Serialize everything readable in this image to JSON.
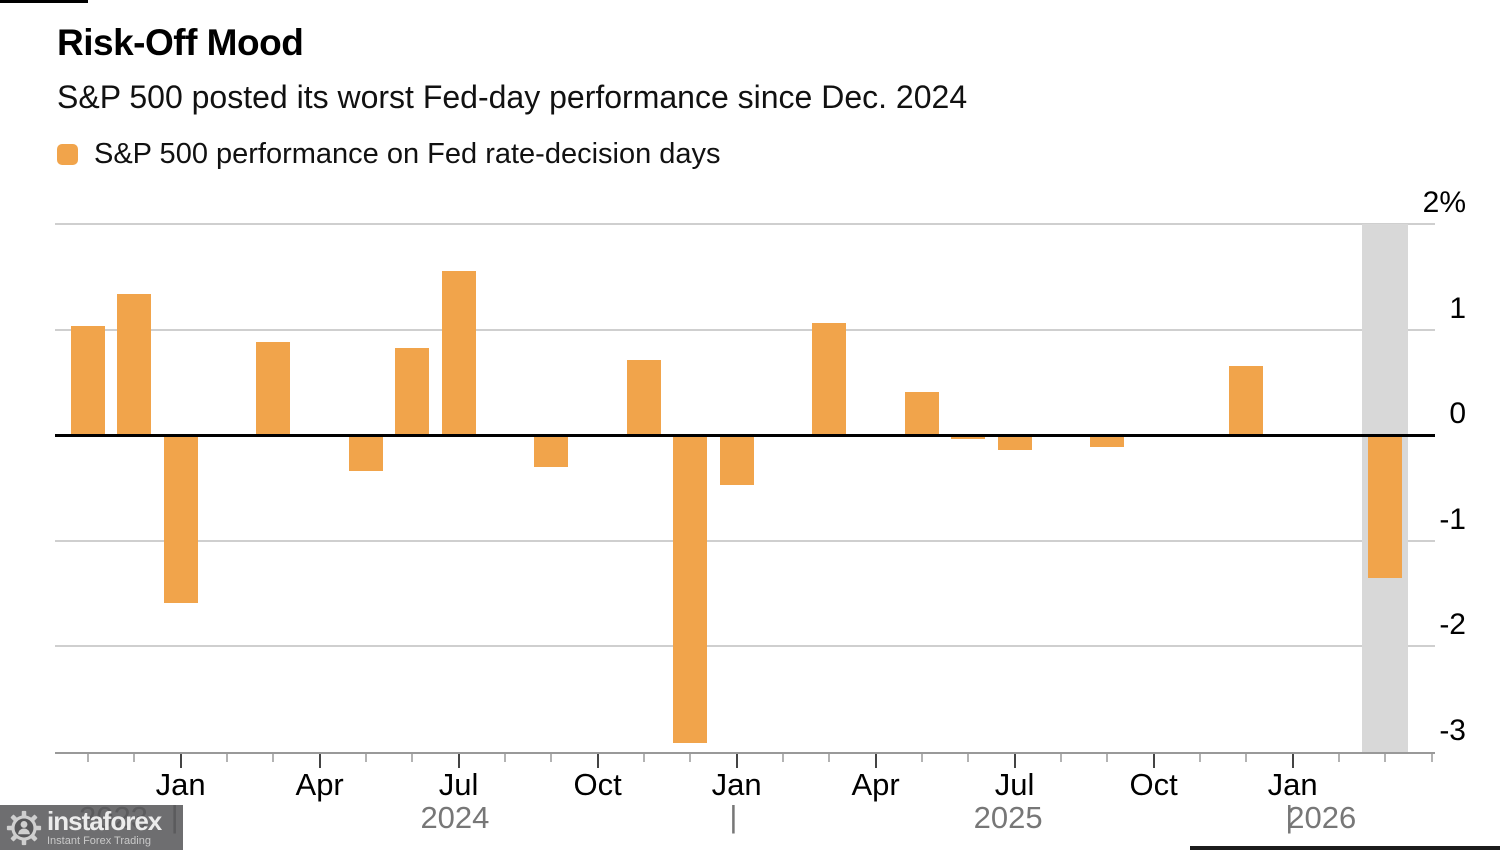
{
  "page": {
    "title": "Risk-Off Mood",
    "subtitle": "S&P 500 posted its worst Fed-day performance since Dec. 2024"
  },
  "legend": {
    "label": "S&P 500 performance on Fed rate-decision days",
    "swatch_color": "#F1A44B"
  },
  "watermark": {
    "brand": "instaforex",
    "tagline": "Instant Forex Trading"
  },
  "chart_data": {
    "type": "bar",
    "title": "Risk-Off Mood",
    "subtitle": "S&P 500 posted its worst Fed-day performance since Dec. 2024",
    "legend_entries": [
      {
        "label": "S&P 500 performance on Fed rate-decision days",
        "color": "#F1A44B"
      }
    ],
    "legend_position": "top-left",
    "unit": "percent",
    "grid": "on",
    "ylim": [
      -3,
      2
    ],
    "y_ticks": [
      {
        "label": "2%",
        "value": 2
      },
      {
        "label": "1",
        "value": 1
      },
      {
        "label": "0",
        "value": 0
      },
      {
        "label": "-1",
        "value": -1
      },
      {
        "label": "-2",
        "value": -2
      },
      {
        "label": "-3",
        "value": -3
      }
    ],
    "x_axis": {
      "timeline_start": "Nov 2023",
      "month_ticks": [
        {
          "label": "Jan",
          "m": 2
        },
        {
          "label": "Apr",
          "m": 5
        },
        {
          "label": "Jul",
          "m": 8
        },
        {
          "label": "Oct",
          "m": 11
        },
        {
          "label": "Jan",
          "m": 14
        },
        {
          "label": "Apr",
          "m": 17
        },
        {
          "label": "Jul",
          "m": 20
        },
        {
          "label": "Oct",
          "m": 23
        },
        {
          "label": "Jan",
          "m": 26
        }
      ],
      "year_labels": [
        {
          "label": "2023",
          "m": 0.55
        },
        {
          "label": "2024",
          "m": 7.92
        },
        {
          "label": "2025",
          "m": 19.86
        },
        {
          "label": "2026",
          "m": 26.63
        }
      ],
      "year_separators": [
        {
          "label": "|",
          "m": 1.87
        },
        {
          "label": "|",
          "m": 13.93
        },
        {
          "label": "|",
          "m": 25.93
        }
      ]
    },
    "points": [
      {
        "date": "Nov 2023",
        "m": 0,
        "value": 1.03
      },
      {
        "date": "Dec 2023",
        "m": 1,
        "value": 1.34
      },
      {
        "date": "Jan 2024",
        "m": 2,
        "value": -1.59
      },
      {
        "date": "Mar 2024",
        "m": 4,
        "value": 0.88
      },
      {
        "date": "May 2024",
        "m": 6,
        "value": -0.34
      },
      {
        "date": "Jun 2024",
        "m": 7,
        "value": 0.82
      },
      {
        "date": "Jul 2024",
        "m": 8,
        "value": 1.55
      },
      {
        "date": "Sep 2024",
        "m": 10,
        "value": -0.3
      },
      {
        "date": "Nov 2024",
        "m": 12,
        "value": 0.71
      },
      {
        "date": "Dec 2024",
        "m": 13,
        "value": -2.92
      },
      {
        "date": "Jan 2025",
        "m": 14,
        "value": -0.47
      },
      {
        "date": "Mar 2025",
        "m": 16,
        "value": 1.06
      },
      {
        "date": "May 2025",
        "m": 18,
        "value": 0.41
      },
      {
        "date": "Jun 2025",
        "m": 19,
        "value": -0.04
      },
      {
        "date": "Jul 2025",
        "m": 20,
        "value": -0.14
      },
      {
        "date": "Sep 2025",
        "m": 22,
        "value": -0.11
      },
      {
        "date": "Dec 2025",
        "m": 25,
        "value": 0.65
      },
      {
        "date": "Jan 2026",
        "m": 26,
        "value": -0.02
      },
      {
        "date": "Mar 2026",
        "m": 28,
        "value": -1.36,
        "highlight": true
      }
    ],
    "highlight_band": {
      "point_date": "Mar 2026",
      "color": "#D8D8D8"
    },
    "colors": {
      "bar": "#F1A44B",
      "highlight_band": "#D8D8D8",
      "gridline": "#CFCFCF",
      "zero_line": "#000000",
      "axis_line": "#999999",
      "year_text": "#777777"
    }
  }
}
